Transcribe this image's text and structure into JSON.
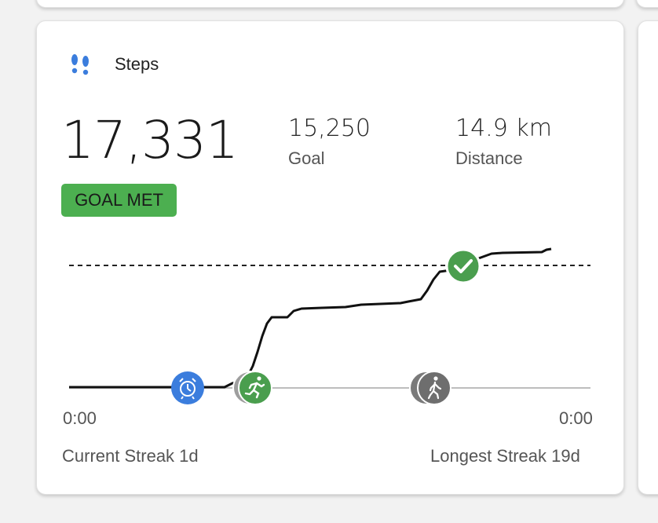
{
  "card": {
    "title": "Steps",
    "icon": "footprints-icon",
    "accent_color": "#3b7ddd"
  },
  "steps": {
    "value": "17,331",
    "goal_value": "15,250",
    "goal_label": "Goal",
    "distance_value": "14.9 km",
    "distance_label": "Distance",
    "status_badge": "GOAL MET",
    "status_color": "#4caf50"
  },
  "timeline": {
    "start_time": "0:00",
    "end_time": "0:00",
    "markers": [
      {
        "name": "alarm-icon",
        "color": "#3b7ddd"
      },
      {
        "name": "running-icon",
        "color": "#4a9e4e"
      },
      {
        "name": "walking-icon",
        "color": "#6e6e6e"
      },
      {
        "name": "checkmark-icon",
        "color": "#4a9e4e"
      }
    ]
  },
  "streaks": {
    "current": "Current Streak 1d",
    "longest": "Longest Streak 19d"
  }
}
